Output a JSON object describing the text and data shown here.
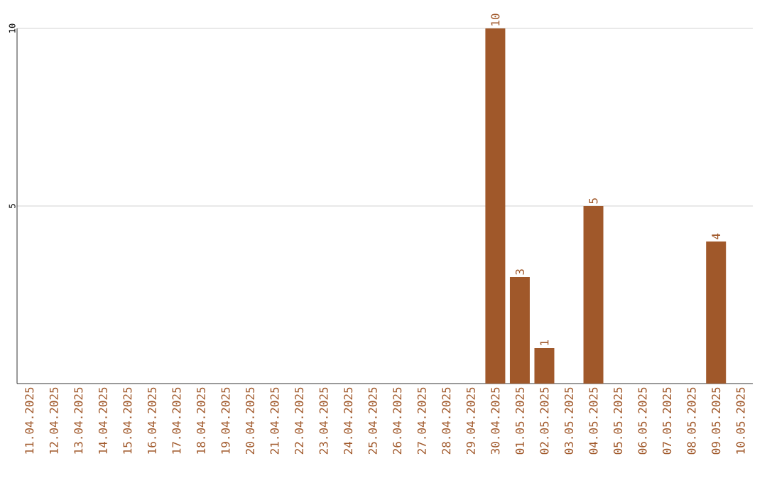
{
  "chart_data": {
    "type": "bar",
    "categories": [
      "11.04.2025",
      "12.04.2025",
      "13.04.2025",
      "14.04.2025",
      "15.04.2025",
      "16.04.2025",
      "17.04.2025",
      "18.04.2025",
      "19.04.2025",
      "20.04.2025",
      "21.04.2025",
      "22.04.2025",
      "23.04.2025",
      "24.04.2025",
      "25.04.2025",
      "26.04.2025",
      "27.04.2025",
      "28.04.2025",
      "29.04.2025",
      "30.04.2025",
      "01.05.2025",
      "02.05.2025",
      "03.05.2025",
      "04.05.2025",
      "05.05.2025",
      "06.05.2025",
      "07.05.2025",
      "08.05.2025",
      "09.05.2025",
      "10.05.2025"
    ],
    "values": [
      0,
      0,
      0,
      0,
      0,
      0,
      0,
      0,
      0,
      0,
      0,
      0,
      0,
      0,
      0,
      0,
      0,
      0,
      0,
      10,
      3,
      1,
      0,
      5,
      0,
      0,
      0,
      0,
      4,
      0
    ],
    "value_labels": [
      null,
      null,
      null,
      null,
      null,
      null,
      null,
      null,
      null,
      null,
      null,
      null,
      null,
      null,
      null,
      null,
      null,
      null,
      null,
      "10",
      "3",
      "1",
      null,
      "5",
      null,
      null,
      null,
      null,
      "4",
      null
    ],
    "color": "#a0582a",
    "ylim": [
      0,
      10
    ],
    "yticks": [
      5,
      10
    ],
    "grid": "y"
  }
}
